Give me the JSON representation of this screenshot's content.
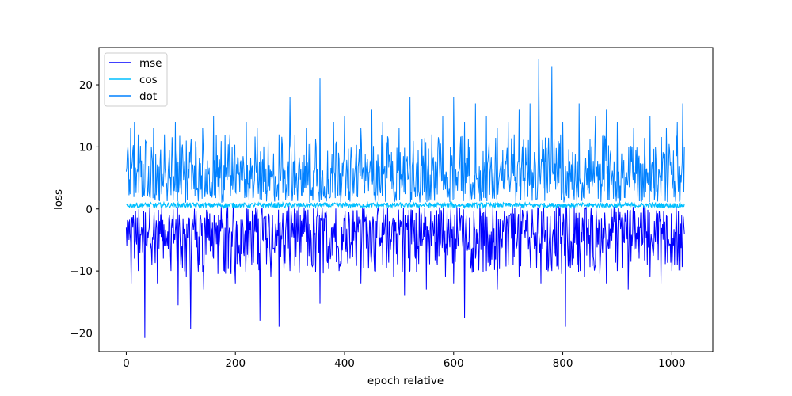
{
  "chart_data": {
    "type": "line",
    "title": "",
    "xlabel": "epoch relative",
    "ylabel": "loss",
    "xlim": [
      -50,
      1075
    ],
    "ylim": [
      -23,
      26
    ],
    "x_ticks": [
      0,
      200,
      400,
      600,
      800,
      1000
    ],
    "y_ticks": [
      -20,
      -10,
      0,
      10,
      20
    ],
    "x_tick_labels": [
      "0",
      "200",
      "400",
      "600",
      "800",
      "1000"
    ],
    "y_tick_labels": [
      "−20",
      "−10",
      "0",
      "10",
      "20"
    ],
    "legend_position": "top-left",
    "grid": false,
    "x_range": [
      0,
      1023
    ],
    "series": [
      {
        "name": "mse",
        "color": "#0000ff",
        "typical_range": [
          -6.5,
          0.5
        ],
        "anchor_x": [
          0,
          1,
          3,
          5,
          7,
          9,
          12,
          15,
          18,
          22,
          26,
          30,
          34,
          38,
          42,
          47,
          52,
          57,
          62,
          68,
          75,
          82,
          88,
          95,
          102,
          110,
          118,
          126,
          134,
          142,
          150,
          160,
          170,
          180,
          190,
          200,
          215,
          230,
          245,
          255,
          265,
          280,
          288,
          300,
          320,
          340,
          355,
          370,
          390,
          410,
          430,
          450,
          470,
          490,
          510,
          530,
          550,
          570,
          585,
          600,
          620,
          640,
          660,
          680,
          700,
          720,
          740,
          760,
          780,
          790,
          805,
          820,
          840,
          860,
          880,
          900,
          920,
          940,
          960,
          980,
          1000,
          1010,
          1020,
          1023
        ],
        "anchor_y": [
          -3,
          -6,
          -2,
          -5,
          -4,
          -12,
          -3,
          -8,
          -5,
          -10,
          -4,
          -7,
          -20.8,
          -6,
          -3,
          -9,
          -5,
          -12,
          -4,
          -8,
          -6,
          -10,
          -4,
          -15.5,
          -6,
          -11,
          -19.3,
          -5,
          -9,
          -13,
          -5,
          -8,
          -6,
          -10,
          -4,
          -12,
          -7,
          -9,
          -18,
          -5,
          -11,
          -19,
          -6,
          -10,
          -7,
          -9,
          -15.3,
          -6,
          -10,
          -8,
          -12,
          -7,
          -9,
          -11,
          -14,
          -8,
          -13,
          -9,
          -11,
          -12,
          -17.6,
          -8,
          -10,
          -13,
          -9,
          -11,
          -7,
          -12,
          -10,
          -9,
          -19,
          -8,
          -11,
          -9,
          -12,
          -10,
          -13,
          -8,
          -11,
          -12,
          -10,
          -9,
          -7,
          -4
        ],
        "values_note": ""
      },
      {
        "name": "cos",
        "color": "#00bfff",
        "typical_range": [
          0.2,
          1.0
        ],
        "anchor_x": [
          0,
          1023
        ],
        "anchor_y": [
          0.5,
          0.5
        ]
      },
      {
        "name": "dot",
        "color": "#0080ff",
        "typical_range": [
          1,
          8
        ],
        "anchor_x": [
          0,
          3,
          8,
          15,
          22,
          35,
          50,
          70,
          90,
          110,
          140,
          160,
          190,
          220,
          240,
          260,
          280,
          300,
          330,
          355,
          380,
          400,
          430,
          450,
          470,
          500,
          520,
          560,
          580,
          600,
          620,
          640,
          660,
          680,
          700,
          720,
          740,
          756,
          780,
          800,
          830,
          860,
          880,
          900,
          930,
          960,
          990,
          1010,
          1020,
          1023
        ],
        "anchor_y": [
          6,
          10,
          13,
          14,
          12,
          11,
          13,
          12,
          14,
          11,
          13,
          15,
          12,
          14,
          13,
          11,
          12,
          18,
          13,
          21,
          14,
          15,
          13,
          16,
          14,
          13,
          18,
          12,
          15,
          18,
          14,
          17,
          15,
          13,
          14,
          16,
          17,
          24.2,
          23,
          14,
          17,
          15,
          16,
          14,
          13,
          15,
          13,
          14,
          17,
          10
        ]
      }
    ]
  }
}
